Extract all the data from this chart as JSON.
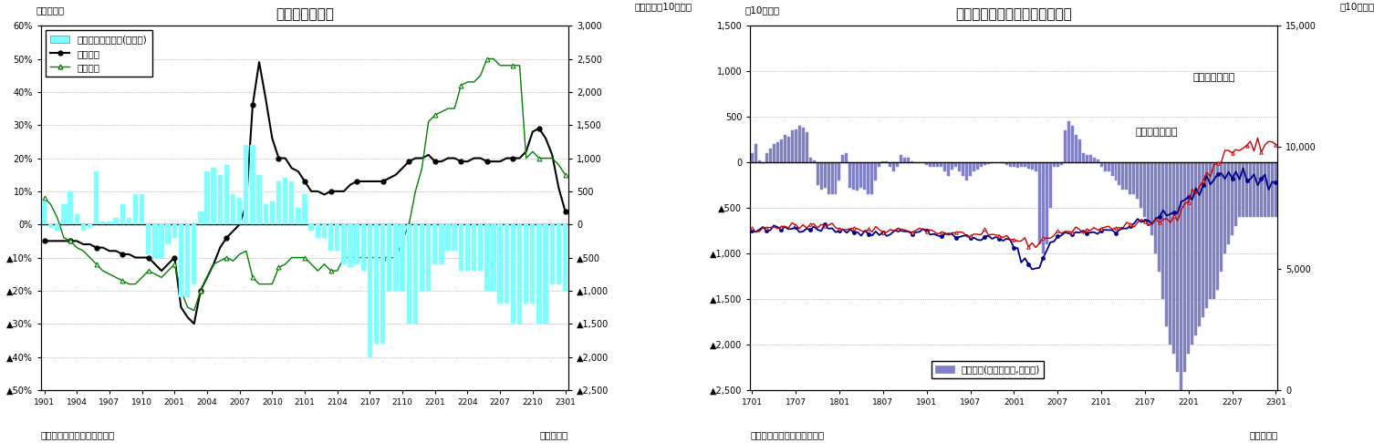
{
  "chart1": {
    "title": "貿易収支の推移",
    "ylabel_left": "（前年比）",
    "ylabel_right": "（前年差、10億円）",
    "xlabel": "（年・月）",
    "source": "（資料）財務省「貿易統計」",
    "ylim_left": [
      -0.5,
      0.6
    ],
    "ylim_right": [
      -2500,
      3000
    ],
    "yticks_left": [
      -0.5,
      -0.4,
      -0.3,
      -0.2,
      -0.1,
      0.0,
      0.1,
      0.2,
      0.3,
      0.4,
      0.5,
      0.6
    ],
    "ytick_labels_left": [
      "▲50%",
      "▲40%",
      "▲30%",
      "▲20%",
      "▲10%",
      "0%",
      "10%",
      "20%",
      "30%",
      "40%",
      "50%",
      "60%"
    ],
    "yticks_right": [
      -2500,
      -2000,
      -1500,
      -1000,
      -500,
      0,
      500,
      1000,
      1500,
      2000,
      2500,
      3000
    ],
    "ytick_labels_right": [
      "▲2,500",
      "▲2,000",
      "▲1,500",
      "▲1,000",
      "▲500",
      "0",
      "500",
      "1,000",
      "1,500",
      "2,000",
      "2,500",
      "3,000"
    ],
    "xtick_labels": [
      "1901",
      "1904",
      "1907",
      "1910",
      "2001",
      "2004",
      "2007",
      "2010",
      "2101",
      "2104",
      "2107",
      "2110",
      "2201",
      "2204",
      "2207",
      "2210",
      "2301"
    ],
    "bar_color": "#7fffff",
    "bar_edge_color": "#7fffff",
    "line1_color": "#000000",
    "line2_color": "#008000",
    "legend_labels": [
      "貿易収支・前年差(右目盛)",
      "輸出金額",
      "輸入金額"
    ],
    "n_bars": 81
  },
  "chart2": {
    "title": "貿易収支（季節調整値）の推移",
    "ylabel_left": "（10億円）",
    "ylabel_right": "（10億円）",
    "xlabel": "（年・月）",
    "source": "（資料）財務省「貿易統計」",
    "ylim_left": [
      -2500,
      1500
    ],
    "ylim_right": [
      0,
      15000
    ],
    "yticks_left": [
      -2500,
      -2000,
      -1500,
      -1000,
      -500,
      0,
      500,
      1000,
      1500
    ],
    "ytick_labels_left": [
      "▲2,500",
      "▲2,000",
      "▲1,500",
      "▲1,000",
      "▲500",
      "0",
      "500",
      "1,000",
      "1,500"
    ],
    "yticks_right": [
      0,
      5000,
      10000,
      15000
    ],
    "ytick_labels_right": [
      "0",
      "5,000",
      "10,000",
      "15,000"
    ],
    "xtick_labels": [
      "1701",
      "1707",
      "1801",
      "1807",
      "1901",
      "1907",
      "2001",
      "2007",
      "2101",
      "2107",
      "2201",
      "2207",
      "2301"
    ],
    "bar_color": "#8080c8",
    "line1_color": "#00008b",
    "line2_color": "#cc0000",
    "legend_label_bar": "貿易収支(季節調整値,左目盛)",
    "annotation1": "輸入（右目盛）",
    "annotation2": "輸出（右目盛）",
    "n_bars": 145
  }
}
